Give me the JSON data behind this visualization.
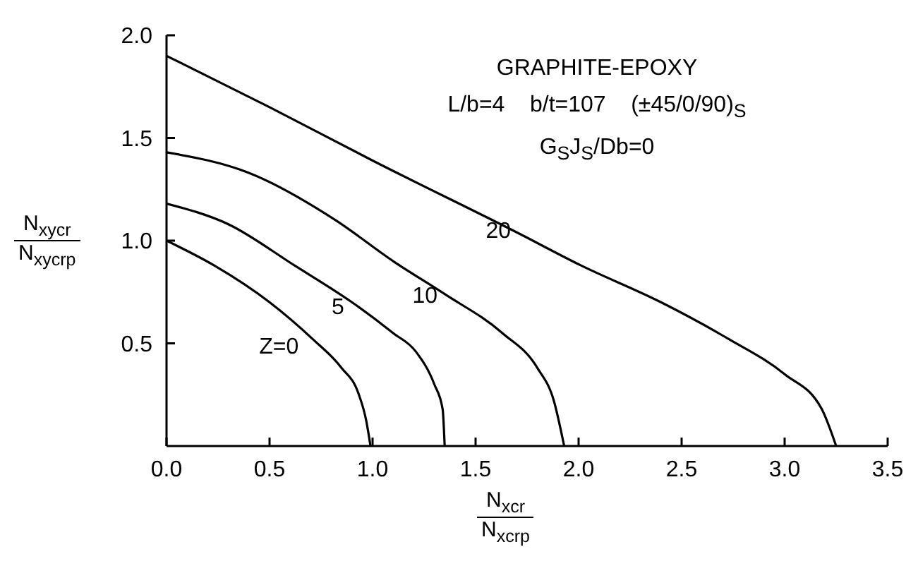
{
  "chart_data": {
    "type": "line",
    "title": "GRAPHITE-EPOXY",
    "subtitle": "L/b=4    b/t=107    (±45/0/90)$_{S}$\nG$_{S}$J$_{S}$/Db=0",
    "xlabel": "N$_{xcr}$\nN$_{xcrp}$",
    "ylabel": "N$_{xycr}$\nN$_{xycrp}$",
    "xlim": [
      0,
      3.5
    ],
    "xticks": [
      {
        "value": 0,
        "label": "0.0"
      },
      0.5,
      {
        "value": 1,
        "label": "1.0"
      },
      1.5,
      {
        "value": 2,
        "label": "2.0"
      },
      2.5,
      {
        "value": 3,
        "label": "3.0"
      },
      3.5
    ],
    "ylim": [
      0,
      2
    ],
    "yticks": [
      0.5,
      {
        "value": 1,
        "label": "1.0"
      },
      1.5,
      {
        "value": 2,
        "label": "2.0"
      }
    ],
    "grid": false,
    "legend": false,
    "marker": "none",
    "line_style": "solid",
    "series": [
      {
        "name": "Z=0",
        "color": "#000000",
        "x": [
          0,
          0.23,
          0.5,
          0.71,
          0.85,
          0.93,
          0.97,
          0.99
        ],
        "values": [
          1.0,
          0.88,
          0.7,
          0.52,
          0.38,
          0.26,
          0.12,
          0
        ]
      },
      {
        "name": "5",
        "color": "#000000",
        "x": [
          0,
          0.3,
          0.62,
          0.9,
          1.1,
          1.21,
          1.3,
          1.34,
          1.35
        ],
        "values": [
          1.18,
          1.08,
          0.88,
          0.7,
          0.55,
          0.46,
          0.3,
          0.18,
          0
        ]
      },
      {
        "name": "10",
        "color": "#000000",
        "x": [
          0,
          0.4,
          0.82,
          1.1,
          1.35,
          1.63,
          1.8,
          1.88,
          1.93
        ],
        "values": [
          1.43,
          1.33,
          1.1,
          0.9,
          0.74,
          0.55,
          0.38,
          0.22,
          0
        ]
      },
      {
        "name": "20",
        "color": "#000000",
        "x": [
          0,
          0.5,
          1.0,
          1.72,
          2.01,
          2.4,
          2.73,
          3.0,
          3.18,
          3.25
        ],
        "values": [
          1.9,
          1.65,
          1.39,
          1.03,
          0.88,
          0.7,
          0.52,
          0.35,
          0.18,
          0
        ]
      }
    ]
  }
}
